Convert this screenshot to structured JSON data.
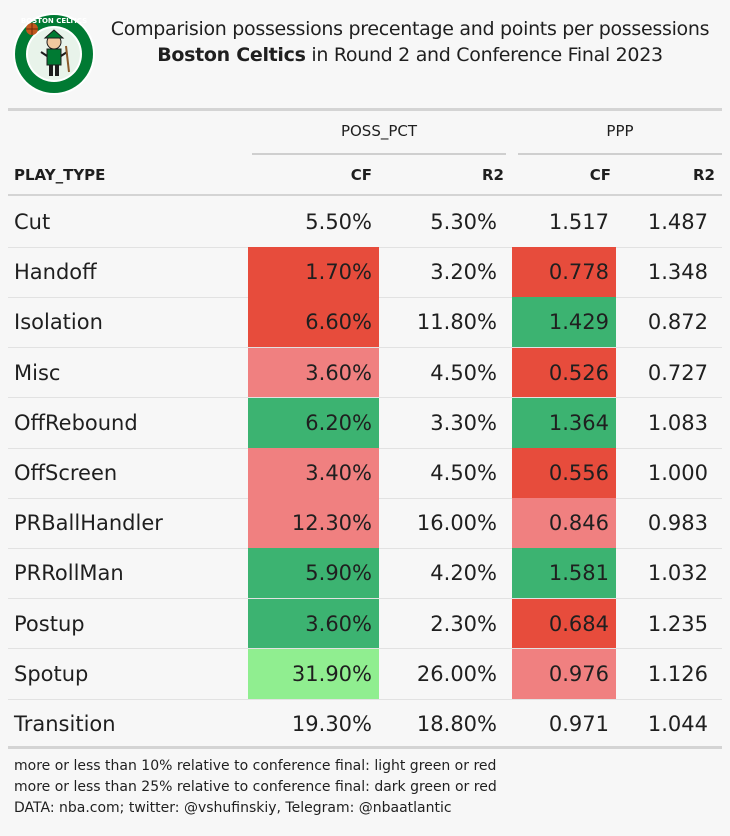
{
  "header": {
    "title_line1": "Comparision possessions precentage and points per possessions",
    "title_line2_bold": "Boston Celtics",
    "title_line2_rest": " in Round 2 and Conference Final 2023",
    "logo_text": "BOSTON CELTICS"
  },
  "table": {
    "spanners": [
      "POSS_PCT",
      "PPP"
    ],
    "columns": [
      "PLAY_TYPE",
      "CF",
      "R2",
      "CF",
      "R2"
    ]
  },
  "chart_data": {
    "type": "table",
    "title": "Comparision possessions precentage and points per possessions Boston Celtics in Round 2 and Conference Final 2023",
    "legend_colors": {
      "light_green": "#90ee90",
      "dark_green": "#3cb371",
      "light_red": "#f08080",
      "dark_red": "#e74c3c",
      "none": ""
    },
    "rows": [
      {
        "play_type": "Cut",
        "poss_cf": "5.50%",
        "poss_r2": "5.30%",
        "ppp_cf": "1.517",
        "ppp_r2": "1.487",
        "poss_color": "none",
        "ppp_color": "none"
      },
      {
        "play_type": "Handoff",
        "poss_cf": "1.70%",
        "poss_r2": "3.20%",
        "ppp_cf": "0.778",
        "ppp_r2": "1.348",
        "poss_color": "dark_red",
        "ppp_color": "dark_red"
      },
      {
        "play_type": "Isolation",
        "poss_cf": "6.60%",
        "poss_r2": "11.80%",
        "ppp_cf": "1.429",
        "ppp_r2": "0.872",
        "poss_color": "dark_red",
        "ppp_color": "dark_green"
      },
      {
        "play_type": "Misc",
        "poss_cf": "3.60%",
        "poss_r2": "4.50%",
        "ppp_cf": "0.526",
        "ppp_r2": "0.727",
        "poss_color": "light_red",
        "ppp_color": "dark_red"
      },
      {
        "play_type": "OffRebound",
        "poss_cf": "6.20%",
        "poss_r2": "3.30%",
        "ppp_cf": "1.364",
        "ppp_r2": "1.083",
        "poss_color": "dark_green",
        "ppp_color": "dark_green"
      },
      {
        "play_type": "OffScreen",
        "poss_cf": "3.40%",
        "poss_r2": "4.50%",
        "ppp_cf": "0.556",
        "ppp_r2": "1.000",
        "poss_color": "light_red",
        "ppp_color": "dark_red"
      },
      {
        "play_type": "PRBallHandler",
        "poss_cf": "12.30%",
        "poss_r2": "16.00%",
        "ppp_cf": "0.846",
        "ppp_r2": "0.983",
        "poss_color": "light_red",
        "ppp_color": "light_red"
      },
      {
        "play_type": "PRRollMan",
        "poss_cf": "5.90%",
        "poss_r2": "4.20%",
        "ppp_cf": "1.581",
        "ppp_r2": "1.032",
        "poss_color": "dark_green",
        "ppp_color": "dark_green"
      },
      {
        "play_type": "Postup",
        "poss_cf": "3.60%",
        "poss_r2": "2.30%",
        "ppp_cf": "0.684",
        "ppp_r2": "1.235",
        "poss_color": "dark_green",
        "ppp_color": "dark_red"
      },
      {
        "play_type": "Spotup",
        "poss_cf": "31.90%",
        "poss_r2": "26.00%",
        "ppp_cf": "0.976",
        "ppp_r2": "1.126",
        "poss_color": "light_green",
        "ppp_color": "light_red"
      },
      {
        "play_type": "Transition",
        "poss_cf": "19.30%",
        "poss_r2": "18.80%",
        "ppp_cf": "0.971",
        "ppp_r2": "1.044",
        "poss_color": "none",
        "ppp_color": "none"
      }
    ]
  },
  "footer": {
    "note1": "more or less than 10% relative to conference final: light green or red",
    "note2": "more or less than 25% relative to conference final: dark green or red",
    "source": "DATA: nba.com; twitter: @vshufinskiy, Telegram: @nbaatlantic"
  }
}
